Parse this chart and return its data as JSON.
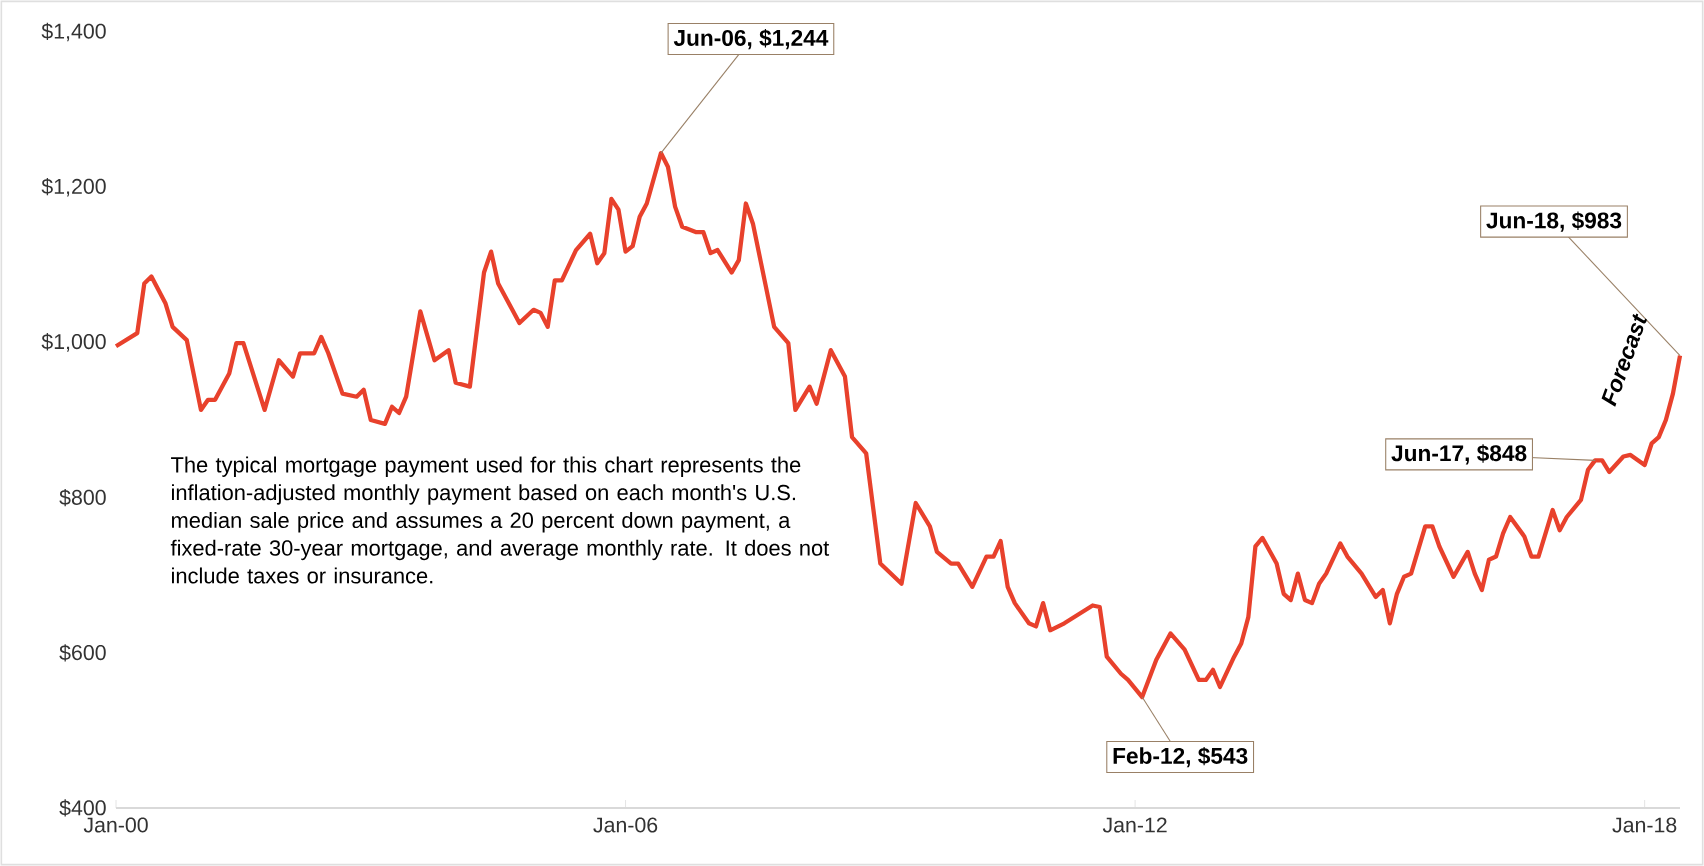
{
  "chart_data": {
    "type": "line",
    "x": [
      "2000-01",
      "2000-04",
      "2000-05",
      "2000-06",
      "2000-08",
      "2000-09",
      "2000-11",
      "2001-01",
      "2001-02",
      "2001-03",
      "2001-05",
      "2001-06",
      "2001-07",
      "2001-10",
      "2001-12",
      "2002-02",
      "2002-03",
      "2002-05",
      "2002-06",
      "2002-07",
      "2002-09",
      "2002-11",
      "2002-12",
      "2003-01",
      "2003-03",
      "2003-04",
      "2003-05",
      "2003-06",
      "2003-08",
      "2003-10",
      "2003-12",
      "2004-01",
      "2004-03",
      "2004-05",
      "2004-06",
      "2004-07",
      "2004-09",
      "2004-10",
      "2004-12",
      "2005-01",
      "2005-02",
      "2005-03",
      "2005-04",
      "2005-06",
      "2005-08",
      "2005-09",
      "2005-10",
      "2005-11",
      "2005-12",
      "2006-01",
      "2006-02",
      "2006-03",
      "2006-04",
      "2006-06",
      "2006-07",
      "2006-08",
      "2006-09",
      "2006-11",
      "2006-12",
      "2007-01",
      "2007-02",
      "2007-04",
      "2007-05",
      "2007-06",
      "2007-07",
      "2007-10",
      "2007-12",
      "2008-01",
      "2008-03",
      "2008-04",
      "2008-06",
      "2008-08",
      "2008-09",
      "2008-11",
      "2009-01",
      "2009-04",
      "2009-06",
      "2009-08",
      "2009-09",
      "2009-11",
      "2009-12",
      "2010-02",
      "2010-04",
      "2010-05",
      "2010-06",
      "2010-07",
      "2010-08",
      "2010-10",
      "2010-11",
      "2010-12",
      "2011-01",
      "2011-03",
      "2011-07",
      "2011-08",
      "2011-09",
      "2011-11",
      "2011-12",
      "2012-02",
      "2012-04",
      "2012-06",
      "2012-08",
      "2012-10",
      "2012-11",
      "2012-12",
      "2013-01",
      "2013-03",
      "2013-04",
      "2013-05",
      "2013-06",
      "2013-07",
      "2013-09",
      "2013-10",
      "2013-11",
      "2013-12",
      "2014-01",
      "2014-02",
      "2014-03",
      "2014-04",
      "2014-06",
      "2014-07",
      "2014-09",
      "2014-11",
      "2014-12",
      "2015-01",
      "2015-02",
      "2015-03",
      "2015-04",
      "2015-06",
      "2015-07",
      "2015-08",
      "2015-10",
      "2015-12",
      "2016-01",
      "2016-02",
      "2016-03",
      "2016-04",
      "2016-05",
      "2016-06",
      "2016-08",
      "2016-09",
      "2016-10",
      "2016-12",
      "2017-01",
      "2017-02",
      "2017-04",
      "2017-05",
      "2017-06",
      "2017-07",
      "2017-08",
      "2017-10",
      "2017-11",
      "2018-01",
      "2018-02",
      "2018-03",
      "2018-04",
      "2018-05",
      "2018-06"
    ],
    "series": [
      {
        "color": "#e8412c",
        "values": [
          995,
          1012,
          1076,
          1085,
          1050,
          1020,
          1003,
          913,
          926,
          926,
          960,
          999,
          999,
          913,
          977,
          956,
          986,
          986,
          1007,
          986,
          934,
          930,
          939,
          900,
          895,
          917,
          909,
          930,
          1040,
          977,
          990,
          948,
          943,
          1090,
          1117,
          1076,
          1042,
          1025,
          1042,
          1038,
          1020,
          1080,
          1080,
          1119,
          1140,
          1102,
          1115,
          1185,
          1171,
          1117,
          1124,
          1162,
          1179,
          1244,
          1226,
          1175,
          1149,
          1142,
          1142,
          1115,
          1119,
          1090,
          1106,
          1179,
          1153,
          1020,
          999,
          913,
          943,
          921,
          990,
          956,
          878,
          857,
          715,
          689,
          793,
          763,
          730,
          715,
          715,
          685,
          724,
          724,
          744,
          685,
          664,
          638,
          634,
          664,
          629,
          638,
          661,
          659,
          595,
          573,
          565,
          543,
          591,
          625,
          604,
          565,
          565,
          578,
          556,
          595,
          612,
          646,
          737,
          748,
          715,
          676,
          668,
          702,
          668,
          664,
          689,
          702,
          741,
          724,
          702,
          672,
          681,
          638,
          676,
          698,
          702,
          763,
          763,
          737,
          698,
          730,
          702,
          681,
          720,
          724,
          754,
          775,
          750,
          724,
          724,
          784,
          758,
          775,
          797,
          836,
          848,
          848,
          833,
          853,
          855,
          842,
          870,
          878,
          900,
          934,
          983
        ]
      }
    ],
    "xlim": [
      "2000-01",
      "2018-06"
    ],
    "xticks": [
      {
        "value": "2000-01",
        "label": "Jan-00"
      },
      {
        "value": "2006-01",
        "label": "Jan-06"
      },
      {
        "value": "2012-01",
        "label": "Jan-12"
      },
      {
        "value": "2018-01",
        "label": "Jan-18"
      }
    ],
    "ylim": [
      400,
      1400
    ],
    "yticks": [
      {
        "value": 400,
        "label": "$400"
      },
      {
        "value": 600,
        "label": "$600"
      },
      {
        "value": 800,
        "label": "$800"
      },
      {
        "value": 1000,
        "label": "$1,000"
      },
      {
        "value": 1200,
        "label": "$1,200"
      },
      {
        "value": 1400,
        "label": "$1,400"
      }
    ],
    "annotations": [
      {
        "text": "Jun-06, $1,244",
        "x": "2006-06",
        "y": 1244
      },
      {
        "text": "Feb-12, $543",
        "x": "2012-02",
        "y": 543
      },
      {
        "text": "Jun-17, $848",
        "x": "2017-06",
        "y": 848
      },
      {
        "text": "Jun-18, $983",
        "x": "2018-06",
        "y": 983
      },
      "Forecast",
      "The typical mortgage payment used for this chart represents the inflation-adjusted monthly payment based on each month's U.S. median sale price and assumes a 20 percent down payment, a fixed-rate 30-year mortgage, and average monthly rate. It does not include taxes or insurance."
    ]
  }
}
